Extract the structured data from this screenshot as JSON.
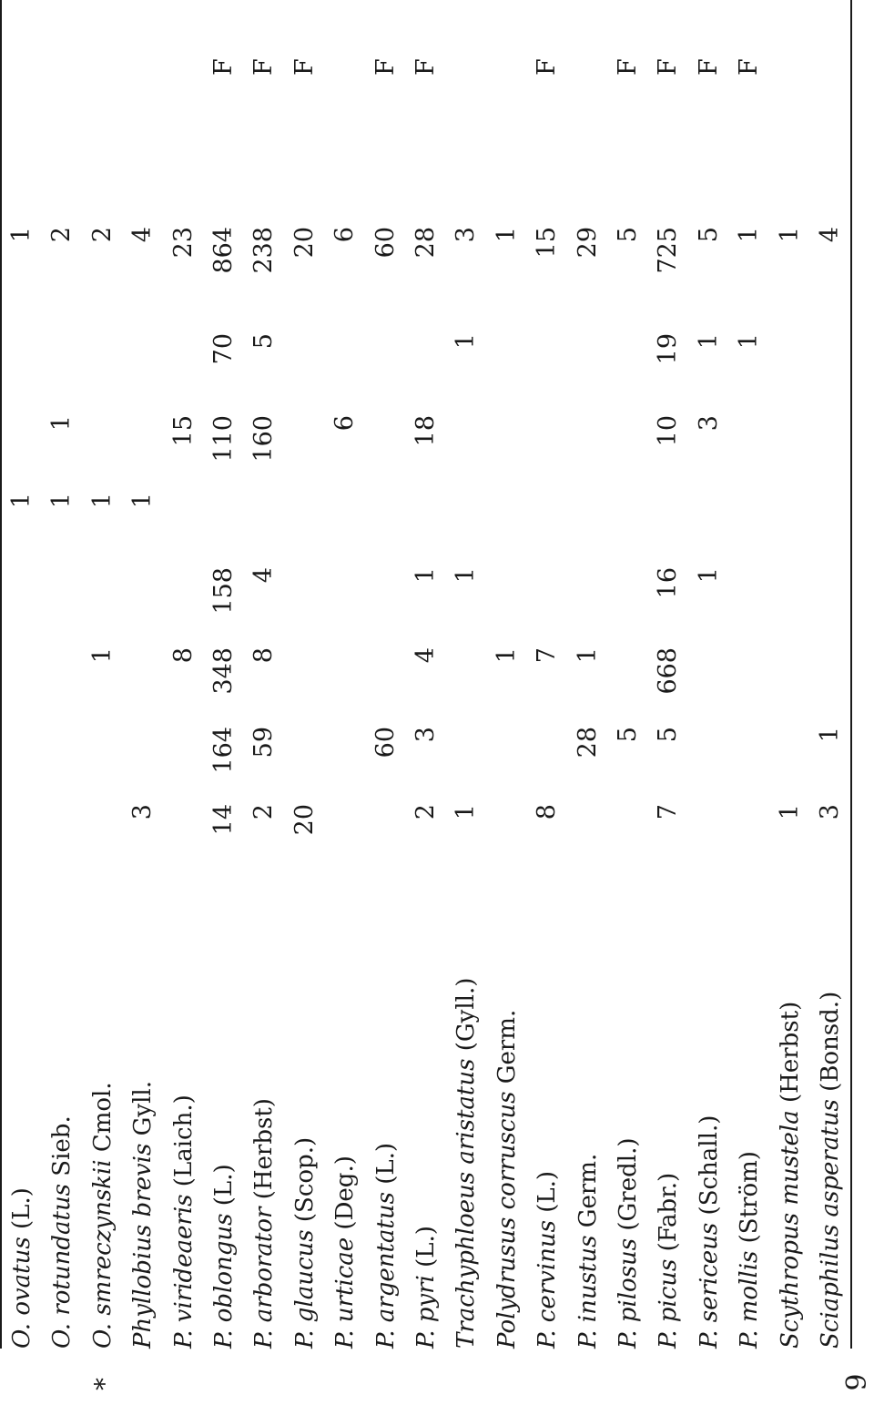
{
  "rows": [
    {
      "mark": "",
      "genus": "O.",
      "species": "ovatus",
      "author": "(L.)",
      "c1": "",
      "c2": "",
      "c3": "",
      "c4": "",
      "c5": "1",
      "c6": "",
      "c7": "",
      "total": "1",
      "flag": ""
    },
    {
      "mark": "",
      "genus": "O.",
      "species": "rotundatus",
      "author": "Sieb.",
      "c1": "",
      "c2": "",
      "c3": "",
      "c4": "",
      "c5": "1",
      "c6": "1",
      "c7": "",
      "total": "2",
      "flag": ""
    },
    {
      "mark": "*",
      "genus": "O.",
      "species": "smreczynskii",
      "author": "Cmol.",
      "c1": "",
      "c2": "",
      "c3": "1",
      "c4": "",
      "c5": "1",
      "c6": "",
      "c7": "",
      "total": "2",
      "flag": ""
    },
    {
      "mark": "",
      "genus": "Phyllobius",
      "species": "brevis",
      "author": "Gyll.",
      "c1": "3",
      "c2": "",
      "c3": "",
      "c4": "",
      "c5": "1",
      "c6": "",
      "c7": "",
      "total": "4",
      "flag": ""
    },
    {
      "mark": "",
      "genus": "P.",
      "species": "virideaeris",
      "author": "(Laich.)",
      "c1": "",
      "c2": "",
      "c3": "8",
      "c4": "",
      "c5": "",
      "c6": "15",
      "c7": "",
      "total": "23",
      "flag": ""
    },
    {
      "mark": "",
      "genus": "P.",
      "species": "oblongus",
      "author": "(L.)",
      "c1": "14",
      "c2": "164",
      "c3": "348",
      "c4": "158",
      "c5": "",
      "c6": "110",
      "c7": "70",
      "total": "864",
      "flag": "F"
    },
    {
      "mark": "",
      "genus": "P.",
      "species": "arborator",
      "author": "(Herbst)",
      "c1": "2",
      "c2": "59",
      "c3": "8",
      "c4": "4",
      "c5": "",
      "c6": "160",
      "c7": "5",
      "total": "238",
      "flag": "F"
    },
    {
      "mark": "",
      "genus": "P.",
      "species": "glaucus",
      "author": "(Scop.)",
      "c1": "20",
      "c2": "",
      "c3": "",
      "c4": "",
      "c5": "",
      "c6": "",
      "c7": "",
      "total": "20",
      "flag": "F"
    },
    {
      "mark": "",
      "genus": "P.",
      "species": "urticae",
      "author": "(Deg.)",
      "c1": "",
      "c2": "",
      "c3": "",
      "c4": "",
      "c5": "",
      "c6": "6",
      "c7": "",
      "total": "6",
      "flag": ""
    },
    {
      "mark": "",
      "genus": "P.",
      "species": "argentatus",
      "author": "(L.)",
      "c1": "",
      "c2": "60",
      "c3": "",
      "c4": "",
      "c5": "",
      "c6": "",
      "c7": "",
      "total": "60",
      "flag": "F"
    },
    {
      "mark": "",
      "genus": "P.",
      "species": "pyri",
      "author": "(L.)",
      "c1": "2",
      "c2": "3",
      "c3": "4",
      "c4": "1",
      "c5": "",
      "c6": "18",
      "c7": "",
      "total": "28",
      "flag": "F"
    },
    {
      "mark": "",
      "genus": "Trachyphloeus",
      "species": "aristatus",
      "author": "(Gyll.)",
      "c1": "1",
      "c2": "",
      "c3": "",
      "c4": "1",
      "c5": "",
      "c6": "",
      "c7": "1",
      "total": "3",
      "flag": ""
    },
    {
      "mark": "",
      "genus": "Polydrusus",
      "species": "corruscus",
      "author": "Germ.",
      "c1": "",
      "c2": "",
      "c3": "1",
      "c4": "",
      "c5": "",
      "c6": "",
      "c7": "",
      "total": "1",
      "flag": ""
    },
    {
      "mark": "",
      "genus": "P.",
      "species": "cervinus",
      "author": "(L.)",
      "c1": "8",
      "c2": "",
      "c3": "7",
      "c4": "",
      "c5": "",
      "c6": "",
      "c7": "",
      "total": "15",
      "flag": "F"
    },
    {
      "mark": "",
      "genus": "P.",
      "species": "inustus",
      "author": "Germ.",
      "c1": "",
      "c2": "28",
      "c3": "1",
      "c4": "",
      "c5": "",
      "c6": "",
      "c7": "",
      "total": "29",
      "flag": ""
    },
    {
      "mark": "",
      "genus": "P.",
      "species": "pilosus",
      "author": "(Gredl.)",
      "c1": "",
      "c2": "5",
      "c3": "",
      "c4": "",
      "c5": "",
      "c6": "",
      "c7": "",
      "total": "5",
      "flag": "F"
    },
    {
      "mark": "",
      "genus": "P.",
      "species": "picus",
      "author": "(Fabr.)",
      "c1": "7",
      "c2": "5",
      "c3": "668",
      "c4": "16",
      "c5": "",
      "c6": "10",
      "c7": "19",
      "total": "725",
      "flag": "F"
    },
    {
      "mark": "",
      "genus": "P.",
      "species": "sericeus",
      "author": "(Schall.)",
      "c1": "",
      "c2": "",
      "c3": "",
      "c4": "1",
      "c5": "",
      "c6": "3",
      "c7": "1",
      "total": "5",
      "flag": "F"
    },
    {
      "mark": "",
      "genus": "P.",
      "species": "mollis",
      "author": "(Ström)",
      "c1": "",
      "c2": "",
      "c3": "",
      "c4": "",
      "c5": "",
      "c6": "",
      "c7": "1",
      "total": "1",
      "flag": "F"
    },
    {
      "mark": "",
      "genus": "Scythropus",
      "species": "mustela",
      "author": "(Herbst)",
      "c1": "1",
      "c2": "",
      "c3": "",
      "c4": "",
      "c5": "",
      "c6": "",
      "c7": "",
      "total": "1",
      "flag": ""
    },
    {
      "mark": "",
      "genus": "Sciaphilus",
      "species": "asperatus",
      "author": "(Bonsd.)",
      "c1": "3",
      "c2": "1",
      "c3": "",
      "c4": "",
      "c5": "",
      "c6": "",
      "c7": "",
      "total": "4",
      "flag": ""
    }
  ],
  "page_number": "9"
}
